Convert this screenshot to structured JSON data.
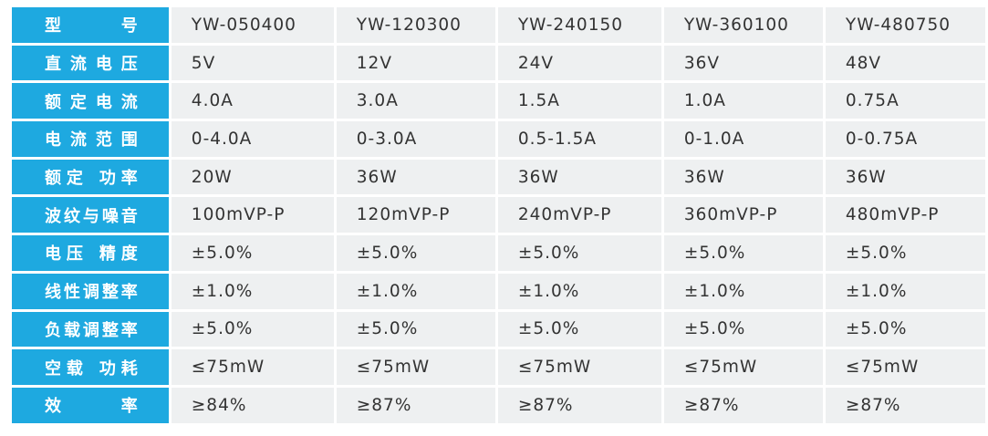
{
  "table": {
    "rows": [
      [
        "型 号",
        "YW-050400",
        "YW-120300",
        "YW-240150",
        "YW-360100",
        "YW-480750"
      ],
      [
        "直流电压",
        "5V",
        "12V",
        "24V",
        "36V",
        "48V"
      ],
      [
        "额定电流",
        "4.0A",
        "3.0A",
        "1.5A",
        "1.0A",
        "0.75A"
      ],
      [
        "电流范围",
        "0-4.0A",
        "0-3.0A",
        "0.5-1.5A",
        "0-1.0A",
        "0-0.75A"
      ],
      [
        "额定 功率",
        "20W",
        "36W",
        "36W",
        "36W",
        "36W"
      ],
      [
        "波纹与噪音",
        "100mVP-P",
        "120mVP-P",
        "240mVP-P",
        "360mVP-P",
        "480mVP-P"
      ],
      [
        "电压 精度",
        "±5.0%",
        "±5.0%",
        "±5.0%",
        "±5.0%",
        "±5.0%"
      ],
      [
        "线性调整率",
        "±1.0%",
        "±1.0%",
        "±1.0%",
        "±1.0%",
        "±1.0%"
      ],
      [
        "负载调整率",
        "±5.0%",
        "±5.0%",
        "±5.0%",
        "±5.0%",
        "±5.0%"
      ],
      [
        "空载 功耗",
        "≤75mW",
        "≤75mW",
        "≤75mW",
        "≤75mW",
        "≤75mW"
      ],
      [
        "效 率",
        "≥84%",
        "≥87%",
        "≥87%",
        "≥87%",
        "≥87%"
      ]
    ]
  }
}
